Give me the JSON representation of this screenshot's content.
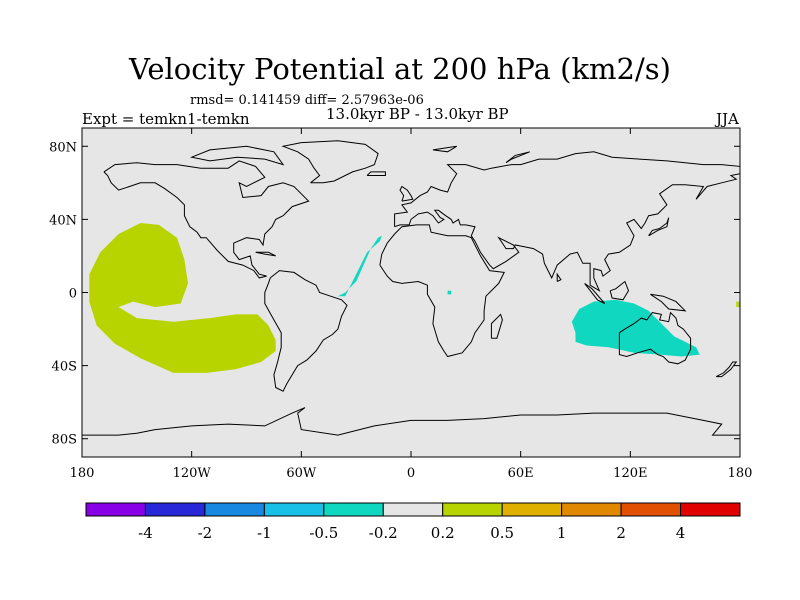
{
  "title": "Velocity Potential at 200 hPa (km2/s)",
  "stats_line": "rmsd= 0.141459 diff= 2.57963e-06",
  "experiment_label": "Expt = temkn1-temkn",
  "period_label": "13.0kyr BP - 13.0kyr BP",
  "season_label": "JJA",
  "map": {
    "projection": "cylindrical equidistant",
    "background_color": "#e6e6e6",
    "lon_range": [
      -180,
      180
    ],
    "lat_range": [
      -90,
      90
    ],
    "lat_ticks": [
      {
        "value": 80,
        "label": "80N"
      },
      {
        "value": 40,
        "label": "40N"
      },
      {
        "value": 0,
        "label": "0"
      },
      {
        "value": -40,
        "label": "40S"
      },
      {
        "value": -80,
        "label": "80S"
      }
    ],
    "lon_ticks": [
      {
        "value": -180,
        "label": "180"
      },
      {
        "value": -120,
        "label": "120W"
      },
      {
        "value": -60,
        "label": "60W"
      },
      {
        "value": 0,
        "label": "0"
      },
      {
        "value": 60,
        "label": "60E"
      },
      {
        "value": 120,
        "label": "120E"
      },
      {
        "value": 180,
        "label": "180"
      }
    ],
    "regions": [
      {
        "name": "eastern-pacific-positive",
        "level": "0.2 to 0.5",
        "color": "#b8d400",
        "polygon": [
          [
            -176,
            -5
          ],
          [
            -176,
            10
          ],
          [
            -170,
            22
          ],
          [
            -160,
            32
          ],
          [
            -148,
            38
          ],
          [
            -138,
            37
          ],
          [
            -128,
            30
          ],
          [
            -124,
            18
          ],
          [
            -122,
            5
          ],
          [
            -126,
            -6
          ],
          [
            -140,
            -8
          ],
          [
            -152,
            -5
          ],
          [
            -160,
            -8
          ],
          [
            -150,
            -14
          ],
          [
            -130,
            -16
          ],
          [
            -110,
            -14
          ],
          [
            -96,
            -12
          ],
          [
            -84,
            -12
          ],
          [
            -78,
            -18
          ],
          [
            -74,
            -26
          ],
          [
            -74,
            -32
          ],
          [
            -82,
            -38
          ],
          [
            -96,
            -42
          ],
          [
            -112,
            -44
          ],
          [
            -130,
            -44
          ],
          [
            -148,
            -36
          ],
          [
            -162,
            -28
          ],
          [
            -172,
            -18
          ]
        ]
      },
      {
        "name": "atlantic-negative",
        "level": "-0.5 to -0.2",
        "color": "#10d8c0",
        "polygon": [
          [
            -40,
            -2
          ],
          [
            -36,
            0
          ],
          [
            -30,
            6
          ],
          [
            -26,
            15
          ],
          [
            -22,
            24
          ],
          [
            -18,
            30
          ],
          [
            -16,
            31
          ],
          [
            -17,
            28
          ],
          [
            -24,
            22
          ],
          [
            -28,
            14
          ],
          [
            -32,
            6
          ],
          [
            -36,
            -2
          ]
        ]
      },
      {
        "name": "africa-small-negative",
        "level": "-0.5 to -0.2",
        "color": "#10d8c0",
        "polygon": [
          [
            20,
            1
          ],
          [
            22,
            1
          ],
          [
            22,
            -1
          ],
          [
            20,
            -1
          ]
        ]
      },
      {
        "name": "indian-ocean-australia-negative",
        "level": "-0.5 to -0.2",
        "color": "#10d8c0",
        "polygon": [
          [
            90,
            -22
          ],
          [
            88,
            -16
          ],
          [
            92,
            -9
          ],
          [
            100,
            -5
          ],
          [
            112,
            -4
          ],
          [
            122,
            -6
          ],
          [
            130,
            -10
          ],
          [
            136,
            -16
          ],
          [
            144,
            -24
          ],
          [
            156,
            -30
          ],
          [
            158,
            -34
          ],
          [
            148,
            -35
          ],
          [
            136,
            -34
          ],
          [
            122,
            -33
          ],
          [
            108,
            -30
          ],
          [
            96,
            -29
          ],
          [
            90,
            -27
          ]
        ]
      },
      {
        "name": "east-edge-positive",
        "level": "0.2 to 0.5",
        "color": "#b8d400",
        "polygon": [
          [
            178,
            -5
          ],
          [
            180,
            -5
          ],
          [
            180,
            -8
          ],
          [
            178,
            -8
          ]
        ]
      }
    ]
  },
  "colorbar": {
    "colors": [
      "#8800e6",
      "#2828d8",
      "#1888e0",
      "#18c0e8",
      "#10d8c0",
      "#e6e6e6",
      "#b8d400",
      "#e0b000",
      "#e08800",
      "#e05000",
      "#e00000"
    ],
    "labels": [
      "-4",
      "-2",
      "-1",
      "-0.5",
      "-0.2",
      "0.2",
      "0.5",
      "1",
      "2",
      "4"
    ]
  }
}
